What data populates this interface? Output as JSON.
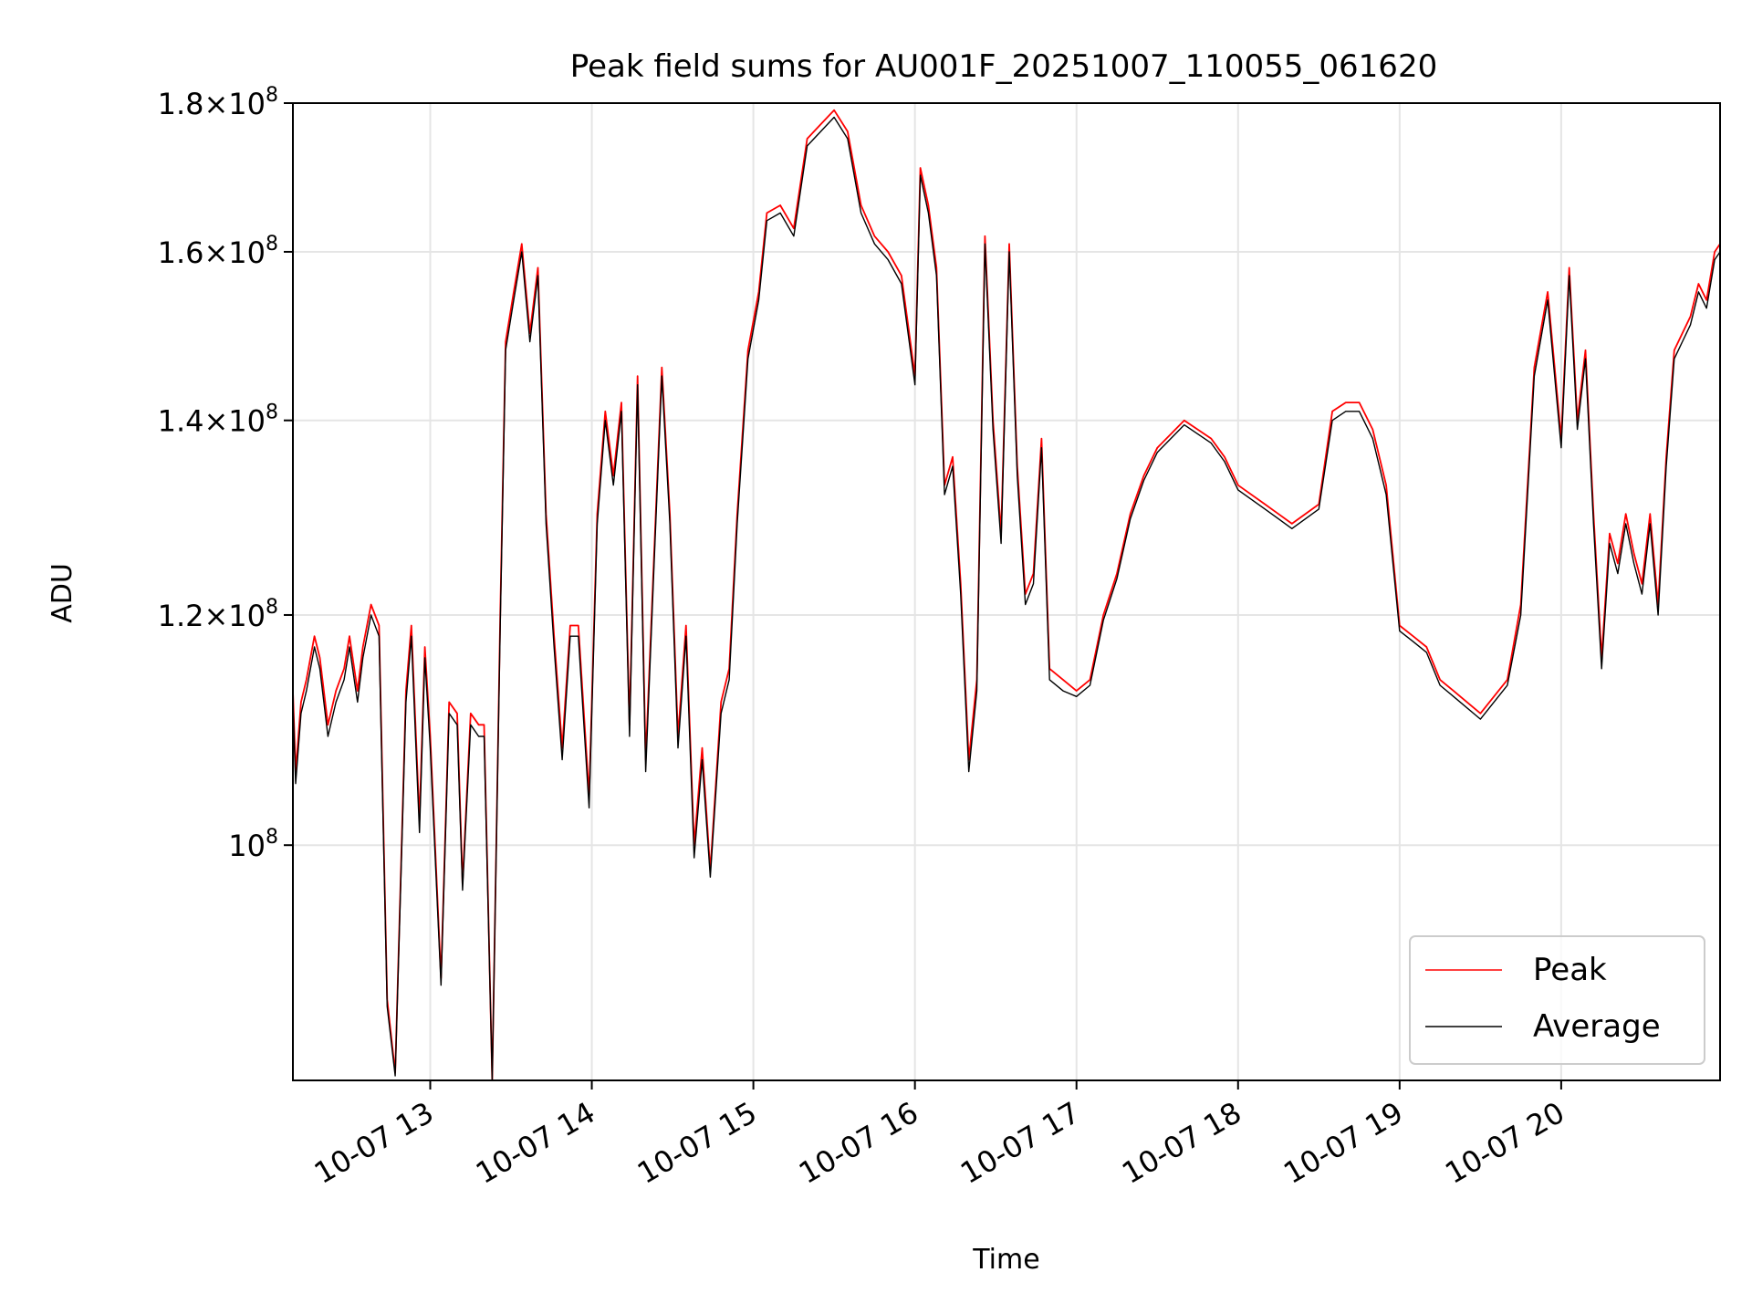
{
  "chart_data": {
    "type": "line",
    "title": "Peak field sums for AU001F_20251007_110055_061620",
    "xlabel": "Time",
    "ylabel": "ADU",
    "y_scale": "log",
    "ylim": [
      83000000,
      180000000
    ],
    "xlim": [
      "2025-10-07 12:09",
      "2025-10-07 20:59"
    ],
    "x_ticks": [
      "10-07 13",
      "10-07 14",
      "10-07 15",
      "10-07 16",
      "10-07 17",
      "10-07 18",
      "10-07 19",
      "10-07 20"
    ],
    "y_ticks": [
      {
        "value": 100000000,
        "mantissa": "",
        "exponent": "8"
      },
      {
        "value": 120000000,
        "mantissa": "1.2",
        "exponent": "8"
      },
      {
        "value": 140000000,
        "mantissa": "1.4",
        "exponent": "8"
      },
      {
        "value": 160000000,
        "mantissa": "1.6",
        "exponent": "8"
      },
      {
        "value": 180000000,
        "mantissa": "1.8",
        "exponent": "8"
      }
    ],
    "grid": true,
    "legend_position": "lower-right",
    "series": [
      {
        "name": "Peak",
        "color": "#ff0000"
      },
      {
        "name": "Average",
        "color": "#000000"
      }
    ],
    "x": [
      "12:09",
      "12:10",
      "12:12",
      "12:14",
      "12:17",
      "12:19",
      "12:22",
      "12:25",
      "12:28",
      "12:30",
      "12:33",
      "12:35",
      "12:38",
      "12:41",
      "12:44",
      "12:47",
      "12:51",
      "12:53",
      "12:56",
      "12:58",
      "13:00",
      "13:04",
      "13:07",
      "13:10",
      "13:12",
      "13:15",
      "13:18",
      "13:20",
      "13:23",
      "13:26",
      "13:28",
      "13:31",
      "13:34",
      "13:37",
      "13:40",
      "13:43",
      "13:46",
      "13:49",
      "13:52",
      "13:55",
      "13:59",
      "14:02",
      "14:05",
      "14:08",
      "14:11",
      "14:14",
      "14:17",
      "14:20",
      "14:23",
      "14:26",
      "14:29",
      "14:32",
      "14:35",
      "14:38",
      "14:41",
      "14:44",
      "14:48",
      "14:51",
      "14:54",
      "14:58",
      "15:02",
      "15:05",
      "15:10",
      "15:15",
      "15:20",
      "15:25",
      "15:30",
      "15:35",
      "15:40",
      "15:45",
      "15:50",
      "15:55",
      "16:00",
      "16:02",
      "16:05",
      "16:08",
      "16:11",
      "16:14",
      "16:17",
      "16:20",
      "16:23",
      "16:26",
      "16:29",
      "16:32",
      "16:35",
      "16:38",
      "16:41",
      "16:44",
      "16:47",
      "16:50",
      "16:55",
      "17:00",
      "17:05",
      "17:10",
      "17:15",
      "17:20",
      "17:25",
      "17:30",
      "17:40",
      "17:50",
      "17:55",
      "18:00",
      "18:10",
      "18:20",
      "18:30",
      "18:35",
      "18:40",
      "18:45",
      "18:50",
      "18:55",
      "19:00",
      "19:05",
      "19:10",
      "19:15",
      "19:20",
      "19:30",
      "19:40",
      "19:45",
      "19:50",
      "19:55",
      "20:00",
      "20:03",
      "20:06",
      "20:09",
      "20:12",
      "20:15",
      "20:18",
      "20:21",
      "20:24",
      "20:27",
      "20:30",
      "20:33",
      "20:36",
      "20:39",
      "20:42",
      "20:45",
      "20:48",
      "20:51",
      "20:54",
      "20:57",
      "20:59"
    ],
    "peak_values": [
      113000000,
      106000000,
      112000000,
      114000000,
      118000000,
      116000000,
      110000000,
      113000000,
      115000000,
      118000000,
      113000000,
      117000000,
      121000000,
      119000000,
      88500000,
      83500000,
      113000000,
      119000000,
      102000000,
      117000000,
      109000000,
      90000000,
      112000000,
      111000000,
      97000000,
      111000000,
      110000000,
      110000000,
      83000000,
      120000000,
      149000000,
      155000000,
      161000000,
      150000000,
      158000000,
      130000000,
      118000000,
      108000000,
      119000000,
      119000000,
      104000000,
      130000000,
      141000000,
      134000000,
      142000000,
      110000000,
      145000000,
      107000000,
      125000000,
      146000000,
      130000000,
      109000000,
      119000000,
      100000000,
      108000000,
      98000000,
      112000000,
      115000000,
      130000000,
      148000000,
      155000000,
      165000000,
      166000000,
      163000000,
      175000000,
      177000000,
      179000000,
      176000000,
      166000000,
      162000000,
      160000000,
      157000000,
      145000000,
      171000000,
      166000000,
      158000000,
      133000000,
      136000000,
      123000000,
      107000000,
      114000000,
      162000000,
      140000000,
      128000000,
      161000000,
      135000000,
      122000000,
      124000000,
      138000000,
      115000000,
      114000000,
      113000000,
      114000000,
      120000000,
      124000000,
      130000000,
      134000000,
      137000000,
      140000000,
      138000000,
      136000000,
      133000000,
      131000000,
      129000000,
      131000000,
      141000000,
      142000000,
      142000000,
      139000000,
      133000000,
      119000000,
      118000000,
      117000000,
      114000000,
      113000000,
      111000000,
      114000000,
      121000000,
      146000000,
      155000000,
      138000000,
      158000000,
      140000000,
      148000000,
      130000000,
      116000000,
      128000000,
      125000000,
      130000000,
      126000000,
      123000000,
      130000000,
      121000000,
      136000000,
      148000000,
      150000000,
      152000000,
      156000000,
      154000000,
      160000000,
      161000000
    ],
    "average_values": [
      112000000,
      105000000,
      111000000,
      113000000,
      117000000,
      115000000,
      109000000,
      112000000,
      114000000,
      117000000,
      112000000,
      116000000,
      120000000,
      118000000,
      88000000,
      83300000,
      112000000,
      118000000,
      101000000,
      116000000,
      108000000,
      89500000,
      111000000,
      110000000,
      96500000,
      110000000,
      109000000,
      109000000,
      83000000,
      119000000,
      148000000,
      154000000,
      160000000,
      149000000,
      157000000,
      129000000,
      117000000,
      107000000,
      118000000,
      118000000,
      103000000,
      129000000,
      140000000,
      133000000,
      141000000,
      109000000,
      144000000,
      106000000,
      124000000,
      145000000,
      129000000,
      108000000,
      118000000,
      99000000,
      107000000,
      97500000,
      111000000,
      114000000,
      129000000,
      147000000,
      154000000,
      164000000,
      165000000,
      162000000,
      174000000,
      176000000,
      178000000,
      175000000,
      165000000,
      161000000,
      159000000,
      156000000,
      144000000,
      170000000,
      165000000,
      157000000,
      132000000,
      135000000,
      122000000,
      106000000,
      113000000,
      161000000,
      139000000,
      127000000,
      160000000,
      134000000,
      121000000,
      123000000,
      137000000,
      114000000,
      113000000,
      112500000,
      113500000,
      119500000,
      123500000,
      129500000,
      133500000,
      136500000,
      139500000,
      137500000,
      135500000,
      132500000,
      130500000,
      128500000,
      130500000,
      140000000,
      141000000,
      141000000,
      138000000,
      132000000,
      118500000,
      117500000,
      116500000,
      113500000,
      112500000,
      110500000,
      113500000,
      120000000,
      145000000,
      154000000,
      137000000,
      157000000,
      139000000,
      147000000,
      129000000,
      115000000,
      127000000,
      124000000,
      129000000,
      125000000,
      122000000,
      129000000,
      120000000,
      135000000,
      147000000,
      149000000,
      151000000,
      155000000,
      153000000,
      159000000,
      160000000
    ]
  }
}
